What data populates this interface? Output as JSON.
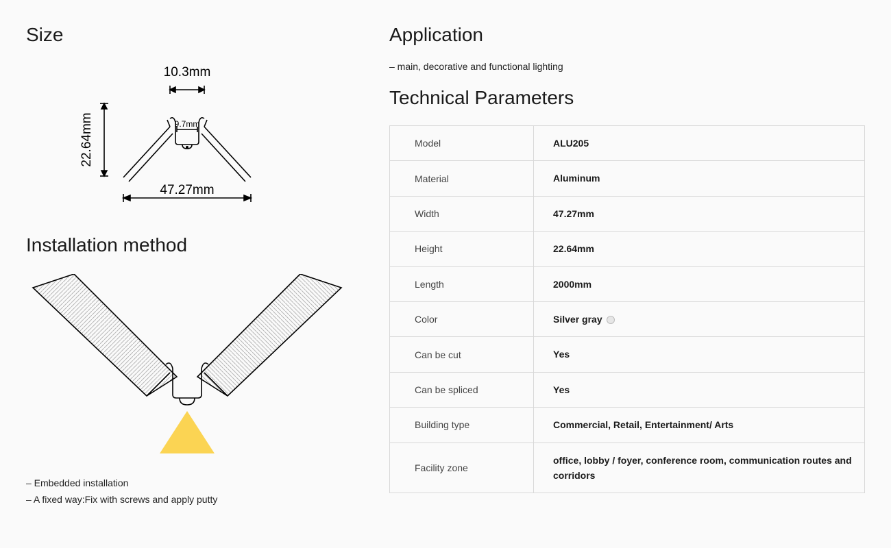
{
  "headings": {
    "size": "Size",
    "installation": "Installation method",
    "application": "Application",
    "technical": "Technical Parameters"
  },
  "size_diagram": {
    "top_width": "10.3mm",
    "inner_width": "9.7mm",
    "height": "22.64mm",
    "total_width": "47.27mm",
    "stroke": "#000000",
    "stroke_width": 1.6
  },
  "installation_diagram": {
    "stroke": "#000000",
    "hatch": "#cfcfcf",
    "light_color": "#fbd24a",
    "stroke_width": 1.6
  },
  "install_notes": [
    "– Embedded installation",
    "– A fixed way:Fix with screws and apply putty"
  ],
  "application_note": "– main, decorative and functional lighting",
  "params": {
    "rows": [
      {
        "key": "Model",
        "val": "ALU205"
      },
      {
        "key": "Material",
        "val": "Aluminum"
      },
      {
        "key": "Width",
        "val": "47.27mm"
      },
      {
        "key": "Height",
        "val": "22.64mm"
      },
      {
        "key": "Length",
        "val": "2000mm"
      },
      {
        "key": "Color",
        "val": "Silver gray",
        "swatch": "#e6e6e6"
      },
      {
        "key": "Can be cut",
        "val": "Yes"
      },
      {
        "key": "Can be spliced",
        "val": "Yes"
      },
      {
        "key": "Building type",
        "val": "Commercial, Retail, Entertainment/ Arts"
      },
      {
        "key": "Facility zone",
        "val": "office, lobby / foyer, conference room, communication routes and corridors",
        "tall": true
      }
    ]
  }
}
